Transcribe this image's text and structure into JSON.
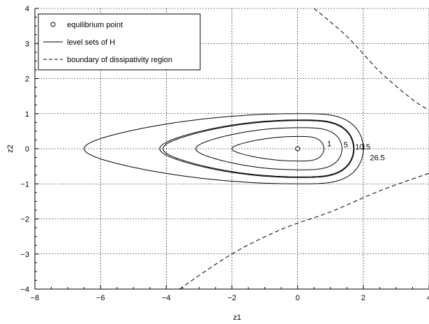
{
  "chart_data": {
    "type": "line",
    "xlabel": "z1",
    "ylabel": "z2",
    "xlim": [
      -8,
      4
    ],
    "ylim": [
      -4,
      4
    ],
    "xticks": [
      -8,
      -6,
      -4,
      -2,
      0,
      2,
      4
    ],
    "yticks": [
      -4,
      -3,
      -2,
      -1,
      0,
      1,
      2,
      3,
      4
    ],
    "grid": true,
    "legend_position": "top-left",
    "legend": [
      {
        "label": "equilibrium point",
        "style": "circle-marker"
      },
      {
        "label": "level sets of H",
        "style": "solid"
      },
      {
        "label": "boundary of dissipativity region",
        "style": "dashed"
      }
    ],
    "equilibrium": {
      "x": 0,
      "y": 0
    },
    "level_sets": [
      {
        "label": "1",
        "left": -2.0,
        "right": 0.8,
        "top": 0.35,
        "bottom": -0.35,
        "label_at": [
          0.9,
          0.15
        ]
      },
      {
        "label": "5",
        "left": -3.1,
        "right": 1.35,
        "top": 0.6,
        "bottom": -0.6,
        "label_at": [
          1.4,
          0.12
        ]
      },
      {
        "label": "10",
        "left": -4.1,
        "right": 1.7,
        "top": 0.8,
        "bottom": -0.8,
        "label_at": [
          1.75,
          0.06
        ]
      },
      {
        "label": "15",
        "left": -4.2,
        "right": 1.72,
        "top": 0.82,
        "bottom": -0.82,
        "label_at": [
          1.95,
          0.06
        ]
      },
      {
        "label": "26.5",
        "left": -6.5,
        "right": 2.0,
        "top": 1.0,
        "bottom": -1.0,
        "label_at": [
          2.2,
          -0.25
        ]
      }
    ],
    "boundary_curves": [
      {
        "points": [
          [
            0.5,
            4.0
          ],
          [
            1.5,
            3.2
          ],
          [
            2.5,
            2.2
          ],
          [
            3.5,
            1.4
          ],
          [
            4.0,
            1.1
          ]
        ]
      },
      {
        "points": [
          [
            -3.6,
            -4.0
          ],
          [
            -2.0,
            -3.0
          ],
          [
            -0.5,
            -2.3
          ],
          [
            1.0,
            -1.8
          ],
          [
            2.5,
            -1.2
          ],
          [
            4.0,
            -0.7
          ]
        ]
      }
    ]
  }
}
